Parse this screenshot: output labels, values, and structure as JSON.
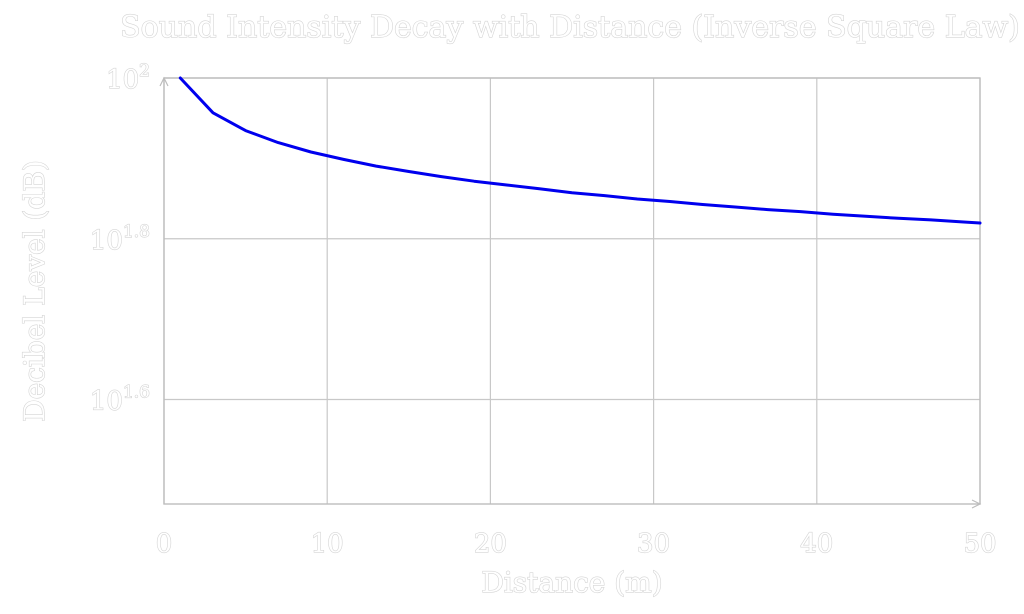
{
  "chart_data": {
    "type": "line",
    "title": "Sound Intensity Decay with Distance (Inverse Square Law)",
    "xlabel": "Distance (m)",
    "ylabel": "Decibel Level (dB)",
    "xlim": [
      0,
      50
    ],
    "ylim_log10": [
      1.47,
      2.0
    ],
    "y_scale": "log",
    "grid": true,
    "x_ticks": [
      0,
      10,
      20,
      30,
      40,
      50
    ],
    "y_ticks": [
      {
        "base": "10",
        "exp": "1.6",
        "exponent_value": 1.6
      },
      {
        "base": "10",
        "exp": "1.8",
        "exponent_value": 1.8
      },
      {
        "base": "10",
        "exp": "2",
        "exponent_value": 2.0
      }
    ],
    "series": [
      {
        "color": "#0000ee",
        "x": [
          1,
          3,
          5,
          7,
          9,
          11,
          13,
          15,
          17,
          19,
          21,
          23,
          25,
          27,
          29,
          31,
          33,
          35,
          37,
          39,
          41,
          43,
          45,
          47,
          49,
          50
        ],
        "y": [
          100.0,
          90.5,
          86.0,
          83.1,
          80.9,
          79.2,
          77.7,
          76.5,
          75.4,
          74.4,
          73.6,
          72.8,
          72.0,
          71.4,
          70.7,
          70.2,
          69.6,
          69.1,
          68.6,
          68.2,
          67.7,
          67.3,
          66.9,
          66.6,
          66.2,
          66.0
        ]
      }
    ]
  }
}
